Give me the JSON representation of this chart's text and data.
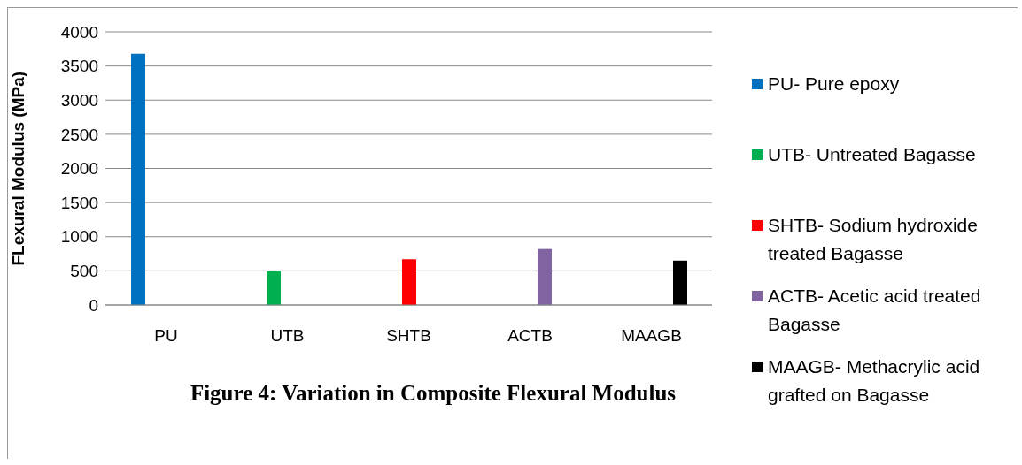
{
  "chart_data": {
    "type": "bar",
    "title": "Figure 4: Variation in Composite Flexural Modulus",
    "ylabel": "FLexural Modulus (MPa)",
    "categories": [
      "PU",
      "UTB",
      "SHTB",
      "ACTB",
      "MAAGB"
    ],
    "series": [
      {
        "name": "PU- Pure epoxy",
        "color": "#0070c0",
        "values": [
          3680,
          null,
          null,
          null,
          null
        ]
      },
      {
        "name": "UTB- Untreated Bagasse",
        "color": "#00b050",
        "values": [
          null,
          500,
          null,
          null,
          null
        ]
      },
      {
        "name": "SHTB- Sodium hydroxide treated Bagasse",
        "color": "#ff0000",
        "values": [
          null,
          null,
          670,
          null,
          null
        ]
      },
      {
        "name": "ACTB- Acetic acid treated Bagasse",
        "color": "#8064a2",
        "values": [
          null,
          null,
          null,
          820,
          null
        ]
      },
      {
        "name": "MAAGB- Methacrylic acid grafted on Bagasse",
        "color": "#000000",
        "values": [
          null,
          null,
          null,
          null,
          650
        ]
      }
    ],
    "ylim": [
      0,
      4000
    ],
    "yticks": [
      0,
      500,
      1000,
      1500,
      2000,
      2500,
      3000,
      3500,
      4000
    ],
    "grid": "y",
    "legend": "right"
  }
}
